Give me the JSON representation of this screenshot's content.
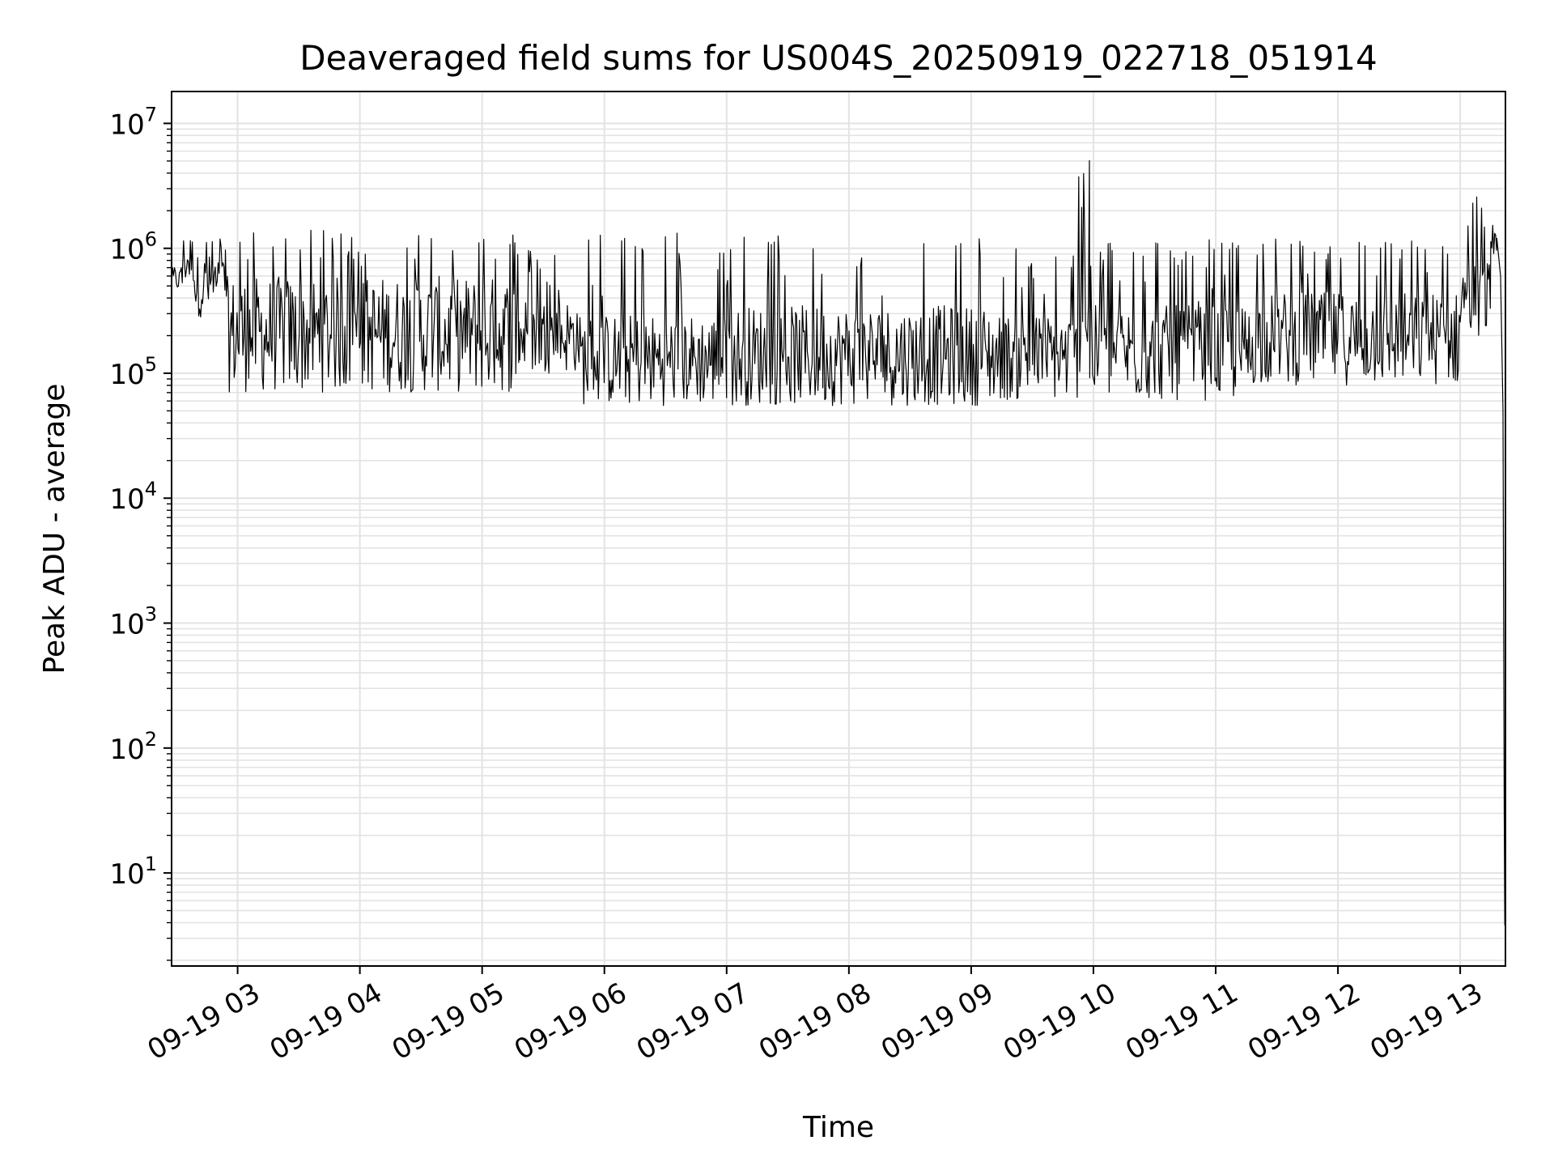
{
  "chart_data": {
    "type": "line",
    "title": "Deaveraged field sums for US004S_20250919_022718_051914",
    "xlabel": "Time",
    "ylabel": "Peak ADU - average",
    "yscale": "log",
    "ylim": [
      1.8,
      18000000
    ],
    "xlim_hours": [
      2.46,
      13.37
    ],
    "grid": true,
    "x_ticks": [
      {
        "hour": 3,
        "label": "09-19 03"
      },
      {
        "hour": 4,
        "label": "09-19 04"
      },
      {
        "hour": 5,
        "label": "09-19 05"
      },
      {
        "hour": 6,
        "label": "09-19 06"
      },
      {
        "hour": 7,
        "label": "09-19 07"
      },
      {
        "hour": 8,
        "label": "09-19 08"
      },
      {
        "hour": 9,
        "label": "09-19 09"
      },
      {
        "hour": 10,
        "label": "09-19 10"
      },
      {
        "hour": 11,
        "label": "09-19 11"
      },
      {
        "hour": 12,
        "label": "09-19 12"
      },
      {
        "hour": 13,
        "label": "09-19 13"
      }
    ],
    "y_ticks": [
      {
        "value": 10,
        "base": "10",
        "exp": "1"
      },
      {
        "value": 100,
        "base": "10",
        "exp": "2"
      },
      {
        "value": 1000,
        "base": "10",
        "exp": "3"
      },
      {
        "value": 10000,
        "base": "10",
        "exp": "4"
      },
      {
        "value": 100000,
        "base": "10",
        "exp": "5"
      },
      {
        "value": 1000000,
        "base": "10",
        "exp": "6"
      },
      {
        "value": 10000000,
        "base": "10",
        "exp": "7"
      }
    ],
    "series": [
      {
        "name": "Peak ADU - average",
        "color": "#000000",
        "segments": [
          {
            "t0": 2.46,
            "t1": 2.55,
            "min": 450000,
            "max": 700000,
            "spike": 700000,
            "p": 0.2
          },
          {
            "t0": 2.55,
            "t1": 2.65,
            "min": 500000,
            "max": 1300000,
            "spike": 1900000,
            "p": 0.15
          },
          {
            "t0": 2.65,
            "t1": 2.9,
            "min": 280000,
            "max": 900000,
            "spike": 1200000,
            "p": 0.1
          },
          {
            "t0": 2.9,
            "t1": 5.3,
            "min": 70000,
            "max": 600000,
            "spike": 1400000,
            "p": 0.12
          },
          {
            "t0": 5.3,
            "t1": 5.8,
            "min": 100000,
            "max": 400000,
            "spike": 1000000,
            "p": 0.08
          },
          {
            "t0": 5.8,
            "t1": 7.0,
            "min": 55000,
            "max": 300000,
            "spike": 1400000,
            "p": 0.1
          },
          {
            "t0": 7.0,
            "t1": 9.2,
            "min": 55000,
            "max": 350000,
            "spike": 1300000,
            "p": 0.1
          },
          {
            "t0": 9.2,
            "t1": 9.88,
            "min": 60000,
            "max": 300000,
            "spike": 1000000,
            "p": 0.12
          },
          {
            "t0": 9.88,
            "t1": 9.97,
            "min": 100000,
            "max": 600000,
            "spike": 8500000,
            "p": 0.5
          },
          {
            "t0": 9.97,
            "t1": 11.3,
            "min": 60000,
            "max": 350000,
            "spike": 1200000,
            "p": 0.12
          },
          {
            "t0": 11.3,
            "t1": 13.0,
            "min": 80000,
            "max": 450000,
            "spike": 1200000,
            "p": 0.16
          },
          {
            "t0": 13.0,
            "t1": 13.25,
            "min": 200000,
            "max": 800000,
            "spike": 2700000,
            "p": 0.12
          },
          {
            "t0": 13.25,
            "t1": 13.3,
            "min": 900000,
            "max": 1400000,
            "spike": 1600000,
            "p": 0.1
          }
        ],
        "tail": [
          {
            "t": 13.3,
            "v": 1200000
          },
          {
            "t": 13.33,
            "v": 600000
          },
          {
            "t": 13.35,
            "v": 50000
          },
          {
            "t": 13.36,
            "v": 30
          },
          {
            "t": 13.365,
            "v": 3.8
          }
        ]
      }
    ]
  }
}
